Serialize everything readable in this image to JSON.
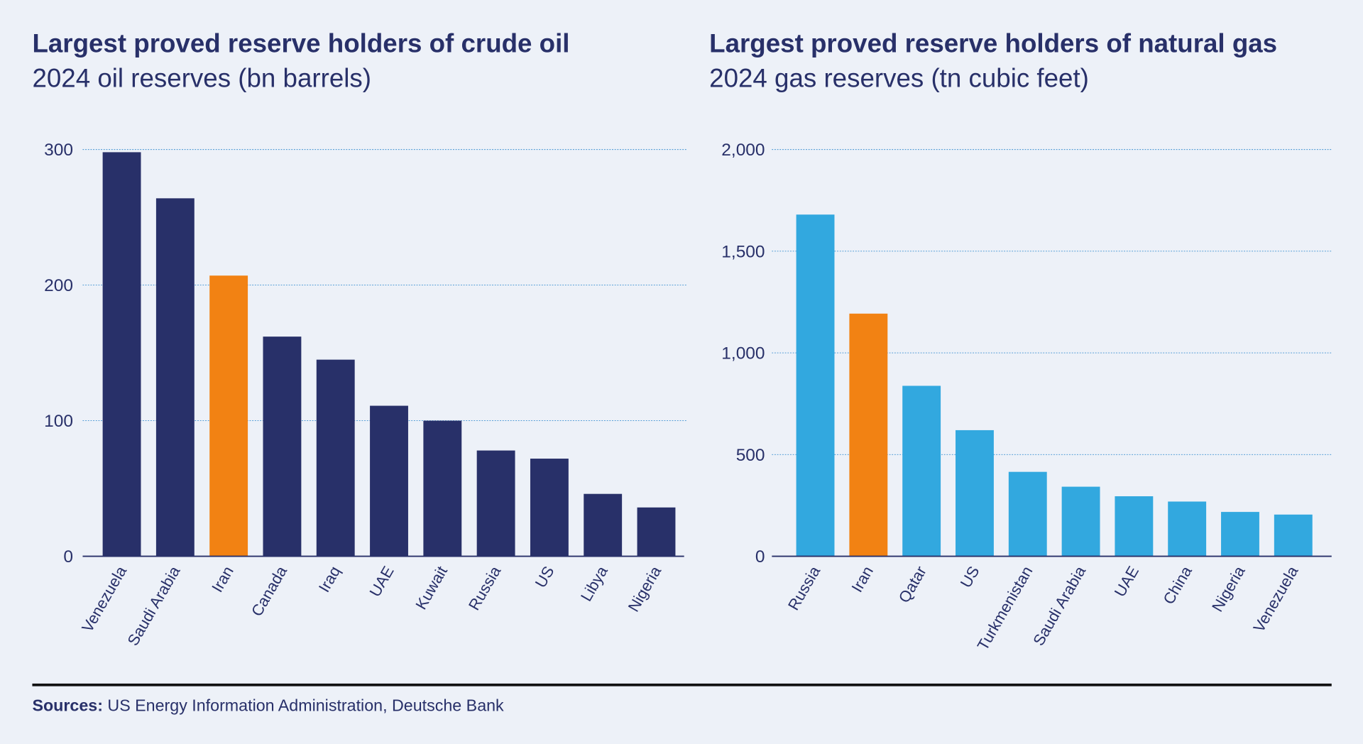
{
  "colors": {
    "background": "#edf1f8",
    "navy": "#283069",
    "highlight": "#f28213",
    "gas": "#32a8df",
    "grid": "#3a8fd0"
  },
  "chart_data": [
    {
      "type": "bar",
      "title": "Largest proved reserve holders of crude oil",
      "subtitle": "2024 oil reserves (bn barrels)",
      "categories": [
        "Venezuela",
        "Saudi Arabia",
        "Iran",
        "Canada",
        "Iraq",
        "UAE",
        "Kuwait",
        "Russia",
        "US",
        "Libya",
        "Nigeria"
      ],
      "values": [
        298,
        264,
        207,
        162,
        145,
        111,
        100,
        78,
        72,
        46,
        36
      ],
      "highlight": "Iran",
      "ylim": [
        0,
        300
      ],
      "yticks": [
        0,
        100,
        200,
        300
      ],
      "ytick_labels": [
        "0",
        "100",
        "200",
        "300"
      ],
      "grid": true,
      "bar_color": "#283069"
    },
    {
      "type": "bar",
      "title": "Largest proved reserve holders of natural gas",
      "subtitle": "2024 gas reserves (tn cubic feet)",
      "categories": [
        "Russia",
        "Iran",
        "Qatar",
        "US",
        "Turkmenistan",
        "Saudi Arabia",
        "UAE",
        "China",
        "Nigeria",
        "Venezuela"
      ],
      "values": [
        1680,
        1193,
        838,
        620,
        415,
        342,
        295,
        269,
        218,
        205
      ],
      "highlight": "Iran",
      "ylim": [
        0,
        2000
      ],
      "yticks": [
        0,
        500,
        1000,
        1500,
        2000
      ],
      "ytick_labels": [
        "0",
        "500",
        "1,000",
        "1,500",
        "2,000"
      ],
      "grid": true,
      "bar_color": "#32a8df"
    }
  ],
  "footer": {
    "sources_label": "Sources:",
    "sources_text": " US Energy Information Administration, Deutsche Bank"
  }
}
